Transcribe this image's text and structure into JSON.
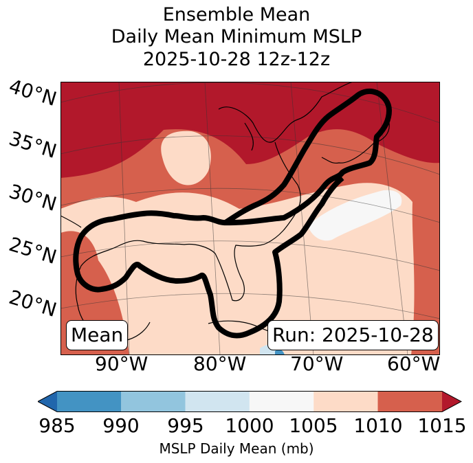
{
  "title": {
    "line1": "Ensemble Mean",
    "line2": "Daily Mean Minimum MSLP",
    "line3": "2025-10-28 12z-12z"
  },
  "map": {
    "lat_labels": [
      "40°N",
      "35°N",
      "30°N",
      "25°N",
      "20°N"
    ],
    "lon_labels": [
      "90°W",
      "80°W",
      "70°W",
      "60°W"
    ],
    "mean_box": "Mean",
    "run_box": "Run: 2025-10-28"
  },
  "colorbar": {
    "ticks": [
      "985",
      "990",
      "995",
      "1000",
      "1005",
      "1010",
      "1015"
    ],
    "label": "MSLP Daily Mean (mb)",
    "colors": [
      "#2166ac",
      "#4393c3",
      "#92c5de",
      "#d1e5f0",
      "#f7f7f7",
      "#fddbc7",
      "#d6604d",
      "#b2182b"
    ]
  }
}
